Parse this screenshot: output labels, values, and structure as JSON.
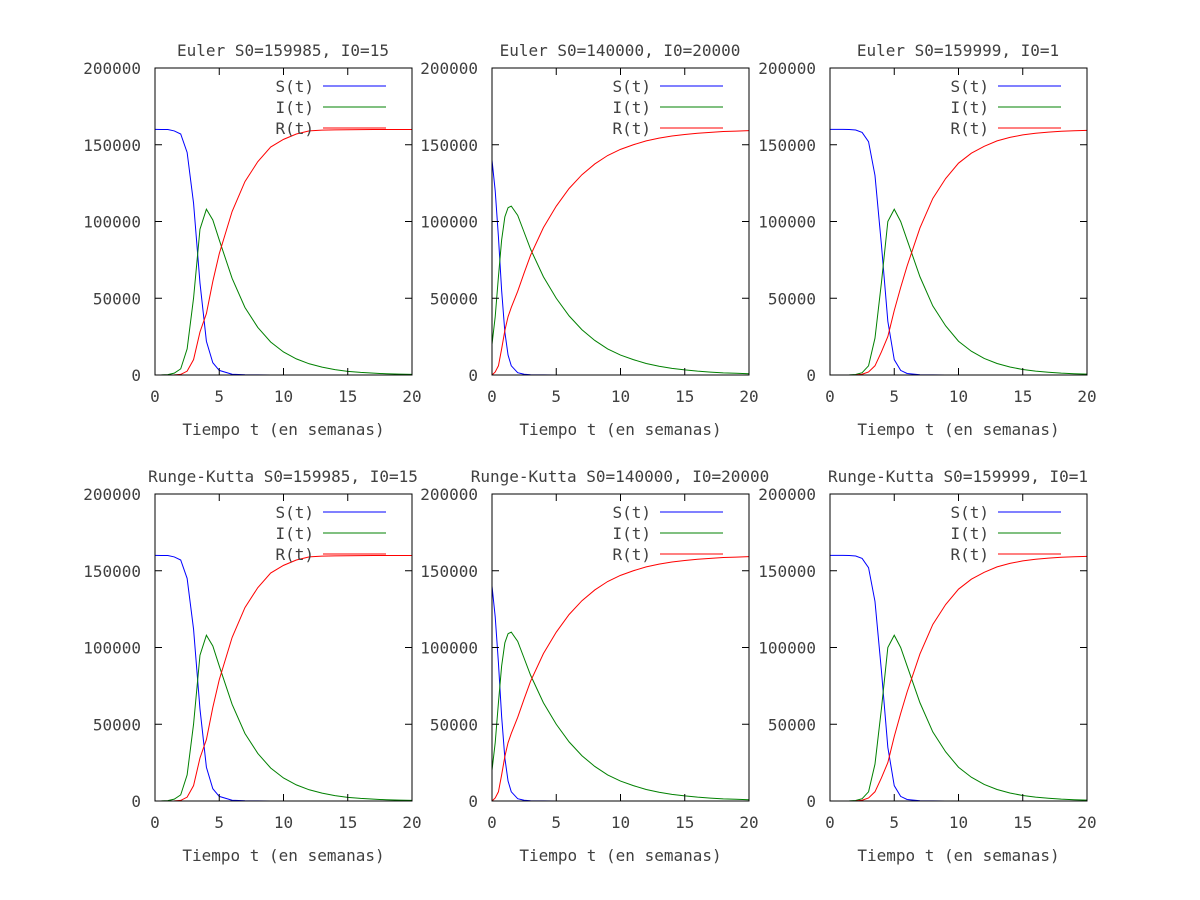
{
  "chart_data": [
    {
      "type": "line",
      "title": "Euler S0=159985, I0=15",
      "xlabel": "Tiempo t (en semanas)",
      "ylabel": "",
      "xlim": [
        0,
        20
      ],
      "ylim": [
        0,
        200000
      ],
      "xticks": [
        "0",
        "5",
        "10",
        "15",
        "20"
      ],
      "yticks": [
        "0",
        "50000",
        "100000",
        "150000",
        "200000"
      ],
      "legend_position": "top-right",
      "grid": false,
      "x": [
        0,
        0.5,
        1,
        1.5,
        2,
        2.5,
        3,
        3.5,
        4,
        4.5,
        5,
        6,
        7,
        8,
        9,
        10,
        11,
        12,
        13,
        14,
        15,
        16,
        17,
        18,
        19,
        20
      ],
      "series": [
        {
          "name": "S(t)",
          "color": "#0000ff",
          "values": [
            159985,
            159970,
            159900,
            159000,
            157000,
            145000,
            112000,
            60000,
            22000,
            8000,
            3000,
            500,
            150,
            50,
            20,
            10,
            5,
            3,
            2,
            1,
            1,
            1,
            0,
            0,
            0,
            0
          ]
        },
        {
          "name": "I(t)",
          "color": "#008000",
          "values": [
            15,
            60,
            250,
            1200,
            4000,
            17000,
            50000,
            95000,
            108000,
            101000,
            88000,
            63000,
            44000,
            31000,
            21500,
            15000,
            10500,
            7300,
            5100,
            3500,
            2400,
            1700,
            1200,
            800,
            550,
            400
          ]
        },
        {
          "name": "R(t)",
          "color": "#ff0000",
          "values": [
            0,
            2,
            20,
            100,
            400,
            2500,
            10000,
            28000,
            40000,
            61000,
            79000,
            106500,
            126000,
            139000,
            148500,
            153500,
            157000,
            159000,
            159500,
            159700,
            159800,
            159850,
            159900,
            159920,
            159940,
            159950
          ]
        }
      ]
    },
    {
      "type": "line",
      "title": "Euler S0=140000, I0=20000",
      "xlabel": "Tiempo t (en semanas)",
      "ylabel": "",
      "xlim": [
        0,
        20
      ],
      "ylim": [
        0,
        200000
      ],
      "xticks": [
        "0",
        "5",
        "10",
        "15",
        "20"
      ],
      "yticks": [
        "0",
        "50000",
        "100000",
        "150000",
        "200000"
      ],
      "legend_position": "top-right",
      "grid": false,
      "x": [
        0,
        0.25,
        0.5,
        0.75,
        1,
        1.25,
        1.5,
        2,
        2.5,
        3,
        4,
        5,
        6,
        7,
        8,
        9,
        10,
        11,
        12,
        13,
        14,
        15,
        16,
        17,
        18,
        19,
        20
      ],
      "series": [
        {
          "name": "S(t)",
          "color": "#0000ff",
          "values": [
            140000,
            120000,
            90000,
            55000,
            28000,
            13000,
            6000,
            1500,
            500,
            200,
            50,
            20,
            10,
            5,
            3,
            2,
            1,
            1,
            1,
            0,
            0,
            0,
            0,
            0,
            0,
            0,
            0
          ]
        },
        {
          "name": "I(t)",
          "color": "#008000",
          "values": [
            20000,
            38000,
            64000,
            88000,
            103000,
            109000,
            110000,
            104000,
            93000,
            82000,
            64000,
            50000,
            38500,
            29500,
            22500,
            17000,
            13000,
            10000,
            7500,
            5700,
            4300,
            3300,
            2500,
            1900,
            1400,
            1100,
            800
          ]
        },
        {
          "name": "R(t)",
          "color": "#ff0000",
          "values": [
            0,
            2000,
            6000,
            17000,
            29000,
            38000,
            44000,
            54500,
            66500,
            78000,
            96000,
            110000,
            121500,
            130500,
            137500,
            143000,
            147000,
            150000,
            152500,
            154300,
            155700,
            156700,
            157500,
            158100,
            158600,
            158900,
            159200
          ]
        }
      ]
    },
    {
      "type": "line",
      "title": "Euler S0=159999, I0=1",
      "xlabel": "Tiempo t (en semanas)",
      "ylabel": "",
      "xlim": [
        0,
        20
      ],
      "ylim": [
        0,
        200000
      ],
      "xticks": [
        "0",
        "5",
        "10",
        "15",
        "20"
      ],
      "yticks": [
        "0",
        "50000",
        "100000",
        "150000",
        "200000"
      ],
      "legend_position": "top-right",
      "grid": false,
      "x": [
        0,
        0.5,
        1,
        1.5,
        2,
        2.5,
        3,
        3.5,
        4,
        4.5,
        5,
        5.5,
        6,
        7,
        8,
        9,
        10,
        11,
        12,
        13,
        14,
        15,
        16,
        17,
        18,
        19,
        20
      ],
      "series": [
        {
          "name": "S(t)",
          "color": "#0000ff",
          "values": [
            159999,
            159995,
            159980,
            159900,
            159600,
            158000,
            152000,
            130000,
            85000,
            35000,
            10000,
            3000,
            1000,
            200,
            50,
            20,
            10,
            5,
            3,
            2,
            1,
            1,
            1,
            0,
            0,
            0,
            0
          ]
        },
        {
          "name": "I(t)",
          "color": "#008000",
          "values": [
            1,
            5,
            20,
            90,
            350,
            1500,
            6000,
            24000,
            60000,
            100000,
            108000,
            100000,
            88000,
            64000,
            45000,
            32000,
            22000,
            15500,
            10800,
            7500,
            5200,
            3600,
            2500,
            1800,
            1200,
            850,
            600
          ]
        },
        {
          "name": "R(t)",
          "color": "#ff0000",
          "values": [
            0,
            0,
            1,
            10,
            50,
            500,
            2000,
            6000,
            15000,
            25000,
            42000,
            57000,
            71000,
            95800,
            115000,
            128000,
            138000,
            144500,
            149000,
            152500,
            154800,
            156400,
            157500,
            158200,
            158800,
            159100,
            159400
          ]
        }
      ]
    },
    {
      "type": "line",
      "title": "Runge-Kutta S0=159985, I0=15",
      "xlabel": "Tiempo t (en semanas)",
      "ylabel": "",
      "xlim": [
        0,
        20
      ],
      "ylim": [
        0,
        200000
      ],
      "xticks": [
        "0",
        "5",
        "10",
        "15",
        "20"
      ],
      "yticks": [
        "0",
        "50000",
        "100000",
        "150000",
        "200000"
      ],
      "legend_position": "top-right",
      "grid": false,
      "x": [
        0,
        0.5,
        1,
        1.5,
        2,
        2.5,
        3,
        3.5,
        4,
        4.5,
        5,
        6,
        7,
        8,
        9,
        10,
        11,
        12,
        13,
        14,
        15,
        16,
        17,
        18,
        19,
        20
      ],
      "series": [
        {
          "name": "S(t)",
          "color": "#0000ff",
          "values": [
            159985,
            159970,
            159900,
            159000,
            157000,
            145000,
            112000,
            60000,
            22000,
            8000,
            3000,
            500,
            150,
            50,
            20,
            10,
            5,
            3,
            2,
            1,
            1,
            1,
            0,
            0,
            0,
            0
          ]
        },
        {
          "name": "I(t)",
          "color": "#008000",
          "values": [
            15,
            60,
            250,
            1200,
            4000,
            17000,
            50000,
            95000,
            108000,
            101000,
            88000,
            63000,
            44000,
            31000,
            21500,
            15000,
            10500,
            7300,
            5100,
            3500,
            2400,
            1700,
            1200,
            800,
            550,
            400
          ]
        },
        {
          "name": "R(t)",
          "color": "#ff0000",
          "values": [
            0,
            2,
            20,
            100,
            400,
            2500,
            10000,
            28000,
            40000,
            61000,
            79000,
            106500,
            126000,
            139000,
            148500,
            153500,
            157000,
            159000,
            159500,
            159700,
            159800,
            159850,
            159900,
            159920,
            159940,
            159950
          ]
        }
      ]
    },
    {
      "type": "line",
      "title": "Runge-Kutta S0=140000, I0=20000",
      "xlabel": "Tiempo t (en semanas)",
      "ylabel": "",
      "xlim": [
        0,
        20
      ],
      "ylim": [
        0,
        200000
      ],
      "xticks": [
        "0",
        "5",
        "10",
        "15",
        "20"
      ],
      "yticks": [
        "0",
        "50000",
        "100000",
        "150000",
        "200000"
      ],
      "legend_position": "top-right",
      "grid": false,
      "x": [
        0,
        0.25,
        0.5,
        0.75,
        1,
        1.25,
        1.5,
        2,
        2.5,
        3,
        4,
        5,
        6,
        7,
        8,
        9,
        10,
        11,
        12,
        13,
        14,
        15,
        16,
        17,
        18,
        19,
        20
      ],
      "series": [
        {
          "name": "S(t)",
          "color": "#0000ff",
          "values": [
            140000,
            120000,
            90000,
            55000,
            28000,
            13000,
            6000,
            1500,
            500,
            200,
            50,
            20,
            10,
            5,
            3,
            2,
            1,
            1,
            1,
            0,
            0,
            0,
            0,
            0,
            0,
            0,
            0
          ]
        },
        {
          "name": "I(t)",
          "color": "#008000",
          "values": [
            20000,
            38000,
            64000,
            88000,
            103000,
            109000,
            110000,
            104000,
            93000,
            82000,
            64000,
            50000,
            38500,
            29500,
            22500,
            17000,
            13000,
            10000,
            7500,
            5700,
            4300,
            3300,
            2500,
            1900,
            1400,
            1100,
            800
          ]
        },
        {
          "name": "R(t)",
          "color": "#ff0000",
          "values": [
            0,
            2000,
            6000,
            17000,
            29000,
            38000,
            44000,
            54500,
            66500,
            78000,
            96000,
            110000,
            121500,
            130500,
            137500,
            143000,
            147000,
            150000,
            152500,
            154300,
            155700,
            156700,
            157500,
            158100,
            158600,
            158900,
            159200
          ]
        }
      ]
    },
    {
      "type": "line",
      "title": "Runge-Kutta S0=159999, I0=1",
      "xlabel": "Tiempo t (en semanas)",
      "ylabel": "",
      "xlim": [
        0,
        20
      ],
      "ylim": [
        0,
        200000
      ],
      "xticks": [
        "0",
        "5",
        "10",
        "15",
        "20"
      ],
      "yticks": [
        "0",
        "50000",
        "100000",
        "150000",
        "200000"
      ],
      "legend_position": "top-right",
      "grid": false,
      "x": [
        0,
        0.5,
        1,
        1.5,
        2,
        2.5,
        3,
        3.5,
        4,
        4.5,
        5,
        5.5,
        6,
        7,
        8,
        9,
        10,
        11,
        12,
        13,
        14,
        15,
        16,
        17,
        18,
        19,
        20
      ],
      "series": [
        {
          "name": "S(t)",
          "color": "#0000ff",
          "values": [
            159999,
            159995,
            159980,
            159900,
            159600,
            158000,
            152000,
            130000,
            85000,
            35000,
            10000,
            3000,
            1000,
            200,
            50,
            20,
            10,
            5,
            3,
            2,
            1,
            1,
            1,
            0,
            0,
            0,
            0
          ]
        },
        {
          "name": "I(t)",
          "color": "#008000",
          "values": [
            1,
            5,
            20,
            90,
            350,
            1500,
            6000,
            24000,
            60000,
            100000,
            108000,
            100000,
            88000,
            64000,
            45000,
            32000,
            22000,
            15500,
            10800,
            7500,
            5200,
            3600,
            2500,
            1800,
            1200,
            850,
            600
          ]
        },
        {
          "name": "R(t)",
          "color": "#ff0000",
          "values": [
            0,
            0,
            1,
            10,
            50,
            500,
            2000,
            6000,
            15000,
            25000,
            42000,
            57000,
            71000,
            95800,
            115000,
            128000,
            138000,
            144500,
            149000,
            152500,
            154800,
            156400,
            157500,
            158200,
            158800,
            159100,
            159400
          ]
        }
      ]
    }
  ]
}
